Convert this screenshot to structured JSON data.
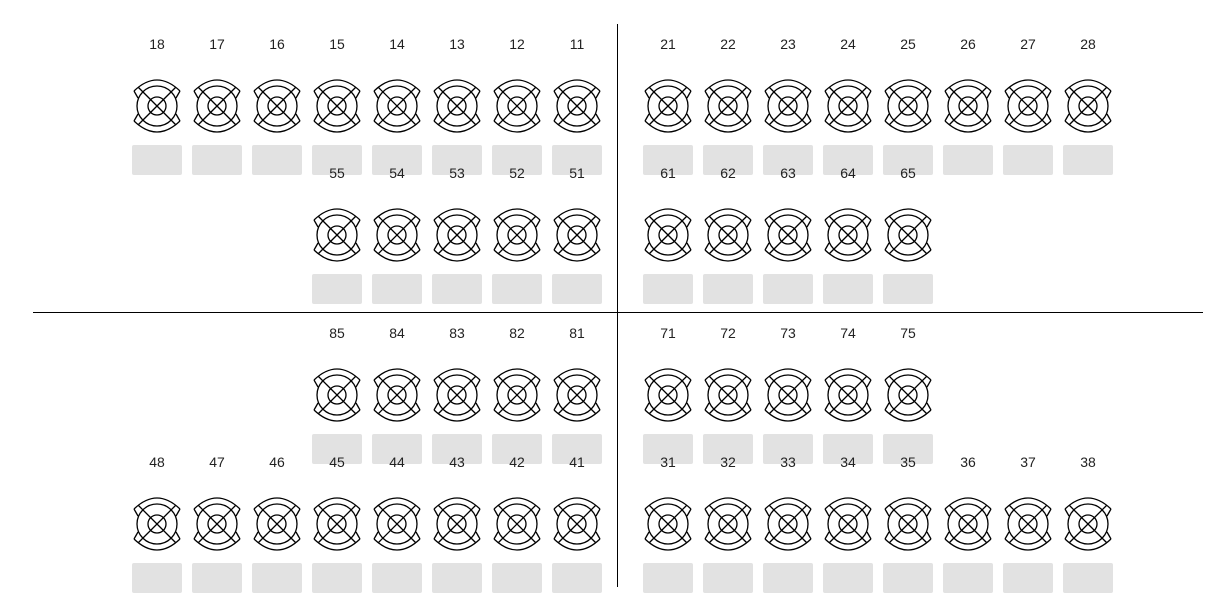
{
  "chart": {
    "upper_right_primary": [
      "21",
      "22",
      "23",
      "24",
      "25",
      "26",
      "27",
      "28"
    ],
    "upper_left_primary": [
      "18",
      "17",
      "16",
      "15",
      "14",
      "13",
      "12",
      "11"
    ],
    "upper_left_deciduous": [
      "55",
      "54",
      "53",
      "52",
      "51"
    ],
    "upper_right_deciduous": [
      "61",
      "62",
      "63",
      "64",
      "65"
    ],
    "lower_left_deciduous": [
      "85",
      "84",
      "83",
      "82",
      "81"
    ],
    "lower_right_deciduous": [
      "71",
      "72",
      "73",
      "74",
      "75"
    ],
    "lower_left_primary": [
      "48",
      "47",
      "46",
      "45",
      "44",
      "43",
      "42",
      "41"
    ],
    "lower_right_primary": [
      "31",
      "32",
      "33",
      "34",
      "35",
      "36",
      "37",
      "38"
    ]
  }
}
